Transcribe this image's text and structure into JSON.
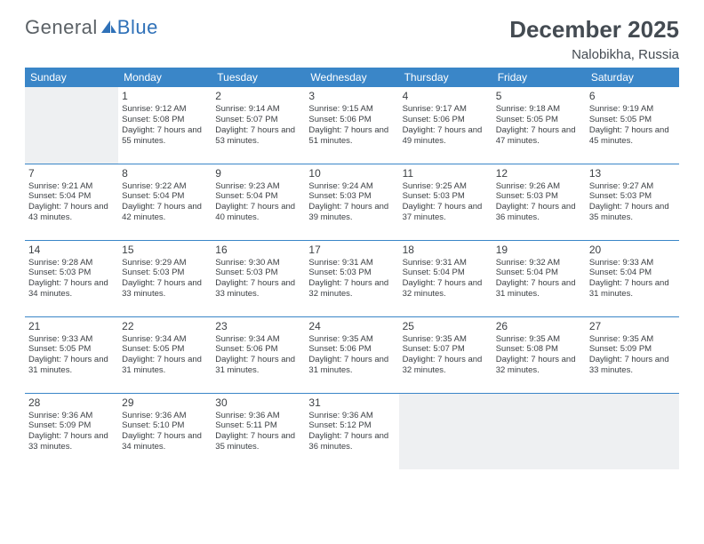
{
  "brand": {
    "general": "General",
    "blue": "Blue"
  },
  "header": {
    "title": "December 2025",
    "location": "Nalobikha, Russia"
  },
  "colors": {
    "header_bg": "#3a86c8",
    "header_fg": "#ffffff",
    "row_border": "#3a86c8",
    "muted_bg": "#eef0f2",
    "text": "#3b3f43",
    "logo_gray": "#5b6166",
    "logo_blue": "#2f71b8"
  },
  "weekdays": [
    "Sunday",
    "Monday",
    "Tuesday",
    "Wednesday",
    "Thursday",
    "Friday",
    "Saturday"
  ],
  "layout": {
    "first_weekday_index": 1,
    "num_days": 31
  },
  "days": [
    {
      "n": 1,
      "sunrise": "9:12 AM",
      "sunset": "5:08 PM",
      "daylight": "7 hours and 55 minutes."
    },
    {
      "n": 2,
      "sunrise": "9:14 AM",
      "sunset": "5:07 PM",
      "daylight": "7 hours and 53 minutes."
    },
    {
      "n": 3,
      "sunrise": "9:15 AM",
      "sunset": "5:06 PM",
      "daylight": "7 hours and 51 minutes."
    },
    {
      "n": 4,
      "sunrise": "9:17 AM",
      "sunset": "5:06 PM",
      "daylight": "7 hours and 49 minutes."
    },
    {
      "n": 5,
      "sunrise": "9:18 AM",
      "sunset": "5:05 PM",
      "daylight": "7 hours and 47 minutes."
    },
    {
      "n": 6,
      "sunrise": "9:19 AM",
      "sunset": "5:05 PM",
      "daylight": "7 hours and 45 minutes."
    },
    {
      "n": 7,
      "sunrise": "9:21 AM",
      "sunset": "5:04 PM",
      "daylight": "7 hours and 43 minutes."
    },
    {
      "n": 8,
      "sunrise": "9:22 AM",
      "sunset": "5:04 PM",
      "daylight": "7 hours and 42 minutes."
    },
    {
      "n": 9,
      "sunrise": "9:23 AM",
      "sunset": "5:04 PM",
      "daylight": "7 hours and 40 minutes."
    },
    {
      "n": 10,
      "sunrise": "9:24 AM",
      "sunset": "5:03 PM",
      "daylight": "7 hours and 39 minutes."
    },
    {
      "n": 11,
      "sunrise": "9:25 AM",
      "sunset": "5:03 PM",
      "daylight": "7 hours and 37 minutes."
    },
    {
      "n": 12,
      "sunrise": "9:26 AM",
      "sunset": "5:03 PM",
      "daylight": "7 hours and 36 minutes."
    },
    {
      "n": 13,
      "sunrise": "9:27 AM",
      "sunset": "5:03 PM",
      "daylight": "7 hours and 35 minutes."
    },
    {
      "n": 14,
      "sunrise": "9:28 AM",
      "sunset": "5:03 PM",
      "daylight": "7 hours and 34 minutes."
    },
    {
      "n": 15,
      "sunrise": "9:29 AM",
      "sunset": "5:03 PM",
      "daylight": "7 hours and 33 minutes."
    },
    {
      "n": 16,
      "sunrise": "9:30 AM",
      "sunset": "5:03 PM",
      "daylight": "7 hours and 33 minutes."
    },
    {
      "n": 17,
      "sunrise": "9:31 AM",
      "sunset": "5:03 PM",
      "daylight": "7 hours and 32 minutes."
    },
    {
      "n": 18,
      "sunrise": "9:31 AM",
      "sunset": "5:04 PM",
      "daylight": "7 hours and 32 minutes."
    },
    {
      "n": 19,
      "sunrise": "9:32 AM",
      "sunset": "5:04 PM",
      "daylight": "7 hours and 31 minutes."
    },
    {
      "n": 20,
      "sunrise": "9:33 AM",
      "sunset": "5:04 PM",
      "daylight": "7 hours and 31 minutes."
    },
    {
      "n": 21,
      "sunrise": "9:33 AM",
      "sunset": "5:05 PM",
      "daylight": "7 hours and 31 minutes."
    },
    {
      "n": 22,
      "sunrise": "9:34 AM",
      "sunset": "5:05 PM",
      "daylight": "7 hours and 31 minutes."
    },
    {
      "n": 23,
      "sunrise": "9:34 AM",
      "sunset": "5:06 PM",
      "daylight": "7 hours and 31 minutes."
    },
    {
      "n": 24,
      "sunrise": "9:35 AM",
      "sunset": "5:06 PM",
      "daylight": "7 hours and 31 minutes."
    },
    {
      "n": 25,
      "sunrise": "9:35 AM",
      "sunset": "5:07 PM",
      "daylight": "7 hours and 32 minutes."
    },
    {
      "n": 26,
      "sunrise": "9:35 AM",
      "sunset": "5:08 PM",
      "daylight": "7 hours and 32 minutes."
    },
    {
      "n": 27,
      "sunrise": "9:35 AM",
      "sunset": "5:09 PM",
      "daylight": "7 hours and 33 minutes."
    },
    {
      "n": 28,
      "sunrise": "9:36 AM",
      "sunset": "5:09 PM",
      "daylight": "7 hours and 33 minutes."
    },
    {
      "n": 29,
      "sunrise": "9:36 AM",
      "sunset": "5:10 PM",
      "daylight": "7 hours and 34 minutes."
    },
    {
      "n": 30,
      "sunrise": "9:36 AM",
      "sunset": "5:11 PM",
      "daylight": "7 hours and 35 minutes."
    },
    {
      "n": 31,
      "sunrise": "9:36 AM",
      "sunset": "5:12 PM",
      "daylight": "7 hours and 36 minutes."
    }
  ],
  "labels": {
    "sunrise": "Sunrise:",
    "sunset": "Sunset:",
    "daylight": "Daylight:"
  }
}
